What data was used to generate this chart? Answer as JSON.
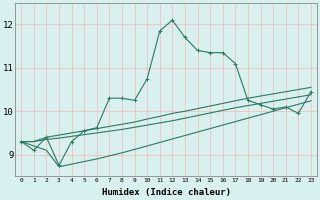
{
  "xlabel": "Humidex (Indice chaleur)",
  "x_values": [
    0,
    1,
    2,
    3,
    4,
    5,
    6,
    7,
    8,
    9,
    10,
    11,
    12,
    13,
    14,
    15,
    16,
    17,
    18,
    19,
    20,
    21,
    22,
    23
  ],
  "line_main": [
    9.3,
    9.1,
    9.4,
    8.75,
    9.3,
    9.55,
    9.62,
    10.3,
    10.3,
    10.25,
    10.75,
    11.85,
    12.1,
    11.7,
    11.4,
    11.35,
    11.35,
    11.1,
    10.25,
    10.15,
    10.05,
    10.1,
    9.95,
    10.45
  ],
  "line_trend1": [
    9.3,
    9.3,
    9.4,
    9.45,
    9.5,
    9.55,
    9.6,
    9.65,
    9.7,
    9.75,
    9.82,
    9.88,
    9.95,
    10.0,
    10.06,
    10.12,
    10.18,
    10.24,
    10.3,
    10.35,
    10.4,
    10.45,
    10.5,
    10.55
  ],
  "line_trend2": [
    9.3,
    9.3,
    9.35,
    9.38,
    9.42,
    9.46,
    9.5,
    9.54,
    9.58,
    9.63,
    9.68,
    9.73,
    9.78,
    9.84,
    9.9,
    9.96,
    10.02,
    10.08,
    10.13,
    10.18,
    10.23,
    10.28,
    10.33,
    10.38
  ],
  "line_trend3": [
    9.3,
    9.2,
    9.1,
    8.72,
    8.78,
    8.84,
    8.9,
    8.97,
    9.04,
    9.12,
    9.2,
    9.28,
    9.36,
    9.44,
    9.52,
    9.6,
    9.68,
    9.76,
    9.84,
    9.92,
    10.0,
    10.08,
    10.16,
    10.24
  ],
  "line_color": "#2a7a62",
  "bg_color": "#d8f0ee",
  "grid_color": "#f5b8b8",
  "ylim": [
    8.5,
    12.5
  ],
  "yticks": [
    9,
    10,
    11,
    12
  ],
  "xlim": [
    -0.5,
    23.5
  ]
}
